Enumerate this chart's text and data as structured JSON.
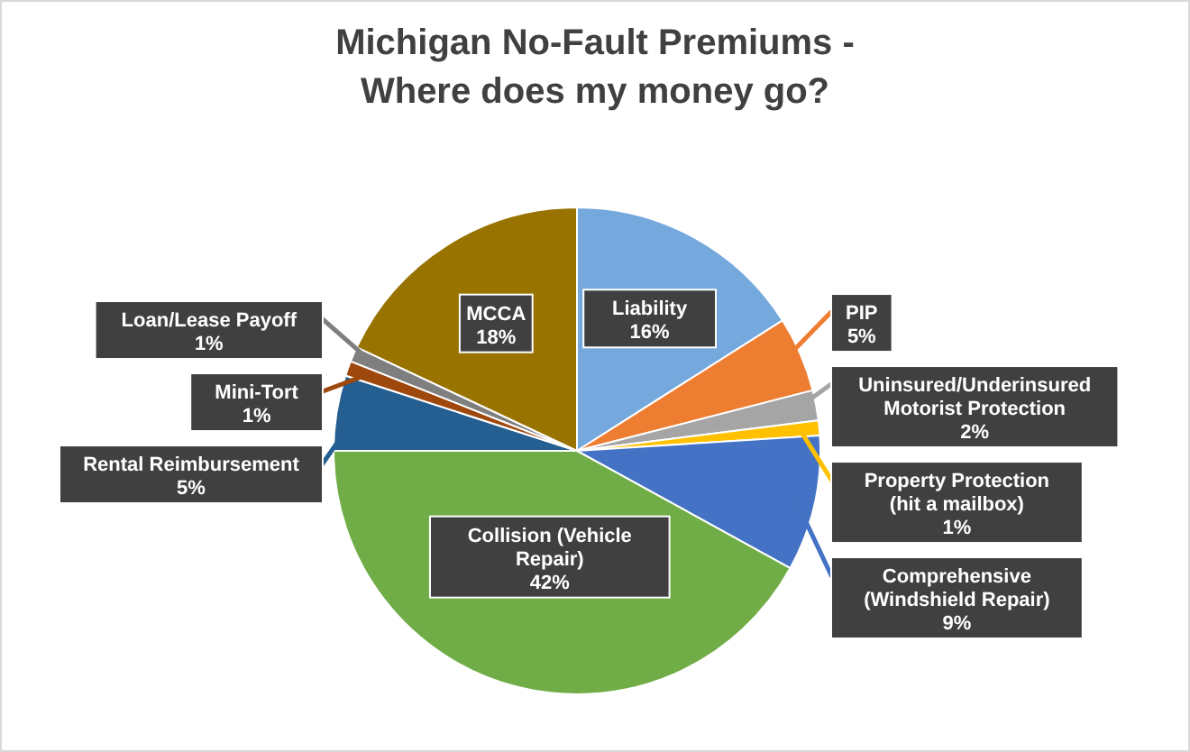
{
  "chart_data": {
    "type": "pie",
    "title": "Michigan No-Fault Premiums - Where does my money go?",
    "categories": [
      "Liability",
      "PIP",
      "Uninsured/Underinsured Motorist Protection",
      "Property Protection (hit a mailbox)",
      "Comprehensive (Windshield Repair)",
      "Collision (Vehicle Repair)",
      "Rental Reimbursement",
      "Mini-Tort",
      "Loan/Lease Payoff",
      "MCCA"
    ],
    "values": [
      16,
      5,
      2,
      1,
      9,
      42,
      5,
      1,
      1,
      18
    ],
    "colors": [
      "#75a8dc",
      "#ed7d31",
      "#a5a5a5",
      "#ffc000",
      "#4472c4",
      "#70ad47",
      "#255e91",
      "#9e480e",
      "#7f7f7f",
      "#997300"
    ],
    "value_labels": [
      "16%",
      "5%",
      "2%",
      "1%",
      "9%",
      "42%",
      "5%",
      "1%",
      "1%",
      "18%"
    ]
  }
}
